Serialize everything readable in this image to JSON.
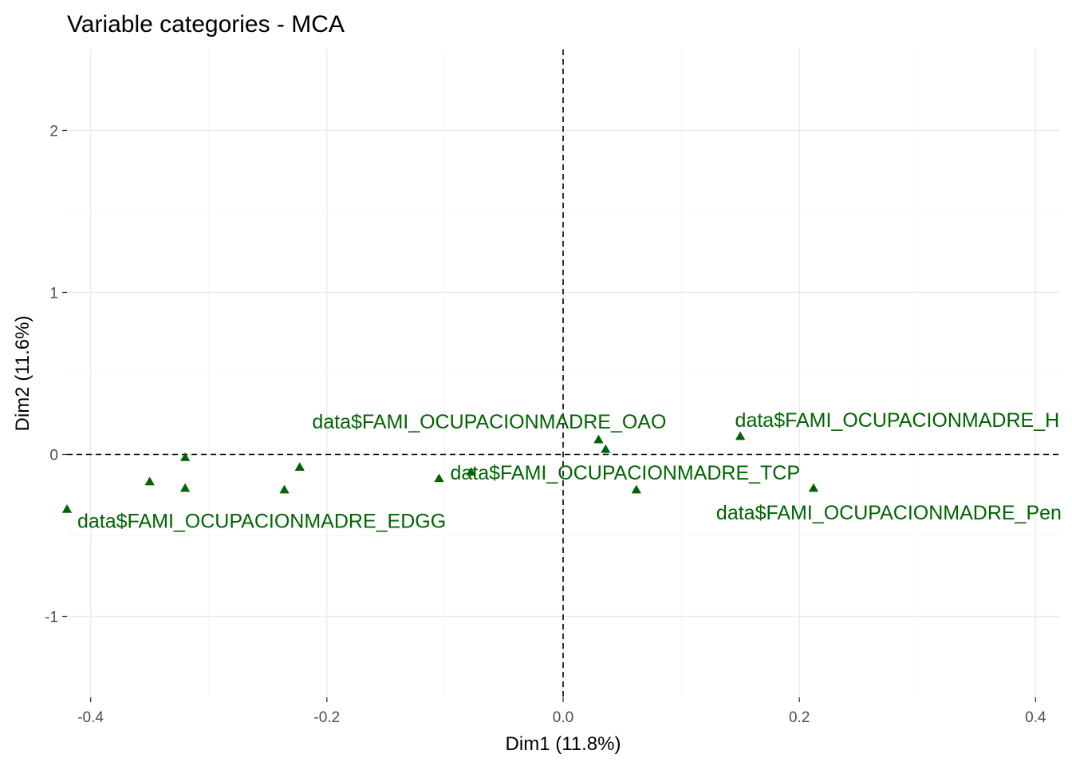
{
  "chart_data": {
    "type": "scatter",
    "title": "Variable categories - MCA",
    "xlabel": "Dim1 (11.8%)",
    "ylabel": "Dim2 (11.6%)",
    "xlim": [
      -0.42,
      0.42
    ],
    "ylim": [
      -1.5,
      2.5
    ],
    "x_ticks": [
      -0.4,
      -0.2,
      0.0,
      0.2,
      0.4
    ],
    "x_tick_labels": [
      "-0.4",
      "-0.2",
      "0.0",
      "0.2",
      "0.4"
    ],
    "y_ticks": [
      -1,
      0,
      1,
      2
    ],
    "y_tick_labels": [
      "-1",
      "0",
      "1",
      "2"
    ],
    "grid": true,
    "reference_lines": {
      "x": 0,
      "y": 0,
      "style": "dashed"
    },
    "point_color": "#006400",
    "marker": "triangle",
    "points": [
      {
        "x": -0.42,
        "y": -0.34,
        "label": "data$FAMI_OCUPACIONMADRE_EDGG"
      },
      {
        "x": -0.35,
        "y": -0.17,
        "label": ""
      },
      {
        "x": -0.32,
        "y": -0.02,
        "label": ""
      },
      {
        "x": -0.32,
        "y": -0.21,
        "label": ""
      },
      {
        "x": -0.236,
        "y": -0.22,
        "label": ""
      },
      {
        "x": -0.223,
        "y": -0.08,
        "label": ""
      },
      {
        "x": -0.105,
        "y": -0.15,
        "label": ""
      },
      {
        "x": -0.078,
        "y": -0.11,
        "label": "data$FAMI_OCUPACIONMADRE_TCP"
      },
      {
        "x": 0.03,
        "y": 0.09,
        "label": "data$FAMI_OCUPACIONMADRE_OAO"
      },
      {
        "x": 0.036,
        "y": 0.03,
        "label": ""
      },
      {
        "x": 0.062,
        "y": -0.22,
        "label": ""
      },
      {
        "x": 0.15,
        "y": 0.11,
        "label": "data$FAMI_OCUPACIONMADRE_H"
      },
      {
        "x": 0.212,
        "y": -0.21,
        "label": "data$FAMI_OCUPACIONMADRE_Pen"
      }
    ]
  }
}
